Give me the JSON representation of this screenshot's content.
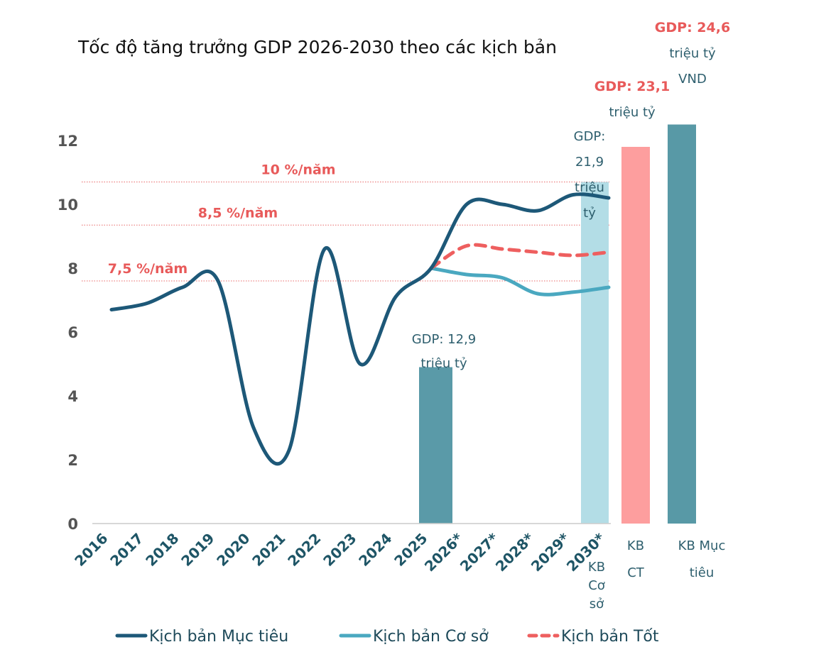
{
  "chart_data": {
    "type": "line",
    "title": "Tốc độ tăng trưởng GDP 2026-2030 theo các kịch bản",
    "xlabel": "",
    "ylabel": "",
    "ylim": [
      0,
      12
    ],
    "yticks": [
      "0",
      "2",
      "4",
      "6",
      "8",
      "10",
      "12"
    ],
    "categories": [
      "2016",
      "2017",
      "2018",
      "2019",
      "2020",
      "2021",
      "2022",
      "2023",
      "2024",
      "2025",
      "2026*",
      "2027*",
      "2028*",
      "2029*",
      "2030*"
    ],
    "series": [
      {
        "name": "Kịch bản  Mục tiêu",
        "color": "#1d5878",
        "style": "solid",
        "values": [
          6.7,
          6.9,
          7.4,
          7.6,
          3.0,
          2.3,
          8.6,
          5.0,
          7.1,
          8.0,
          10.0,
          10.0,
          9.8,
          10.3,
          10.2
        ]
      },
      {
        "name": "Kịch bản Cơ sở",
        "color": "#4aa8c0",
        "style": "solid",
        "values": [
          null,
          null,
          null,
          null,
          null,
          null,
          null,
          null,
          null,
          8.0,
          7.8,
          7.7,
          7.2,
          7.25,
          7.4
        ]
      },
      {
        "name": "Kịch bản Tốt",
        "color": "#ee5f5f",
        "style": "dashed",
        "values": [
          null,
          null,
          null,
          null,
          null,
          null,
          null,
          null,
          null,
          8.0,
          8.7,
          8.6,
          8.5,
          8.4,
          8.5
        ]
      }
    ],
    "reference_lines": [
      {
        "label": "10 %/năm",
        "value": 10.7
      },
      {
        "label": "8,5 %/năm",
        "value": 9.35
      },
      {
        "label": "7,5 %/năm",
        "value": 7.6
      }
    ],
    "bars": [
      {
        "category": "2025",
        "value": 4.9,
        "color": "#5a9aa8",
        "annotation": [
          "GDP: 12,9",
          "triệu tỷ"
        ],
        "annotation_color": "#2e5f6e"
      },
      {
        "category": "KB Cơ sở",
        "label": [
          "KB",
          "Cơ",
          "sở"
        ],
        "value": 10.7,
        "color": "#b3dde6",
        "annotation": [
          "GDP:",
          "21,9",
          "triệu",
          "tỷ"
        ],
        "annotation_color": "#2e5f6e"
      },
      {
        "category": "KB CT",
        "label": [
          "KB",
          "CT"
        ],
        "value": 11.8,
        "color": "#fd9e9e",
        "annotation": [
          "GDP: 23,1",
          "triệu tỷ"
        ],
        "annotation_color": "#e85a5a"
      },
      {
        "category": "KB Mục tiêu",
        "label": [
          "KB Mục",
          "tiêu"
        ],
        "value": 12.5,
        "color": "#5899a6",
        "annotation": [
          "GDP: 24,6",
          "triệu tỷ",
          "VND"
        ],
        "annotation_color": "#e85a5a"
      }
    ],
    "grid": false,
    "legend_position": "bottom"
  }
}
